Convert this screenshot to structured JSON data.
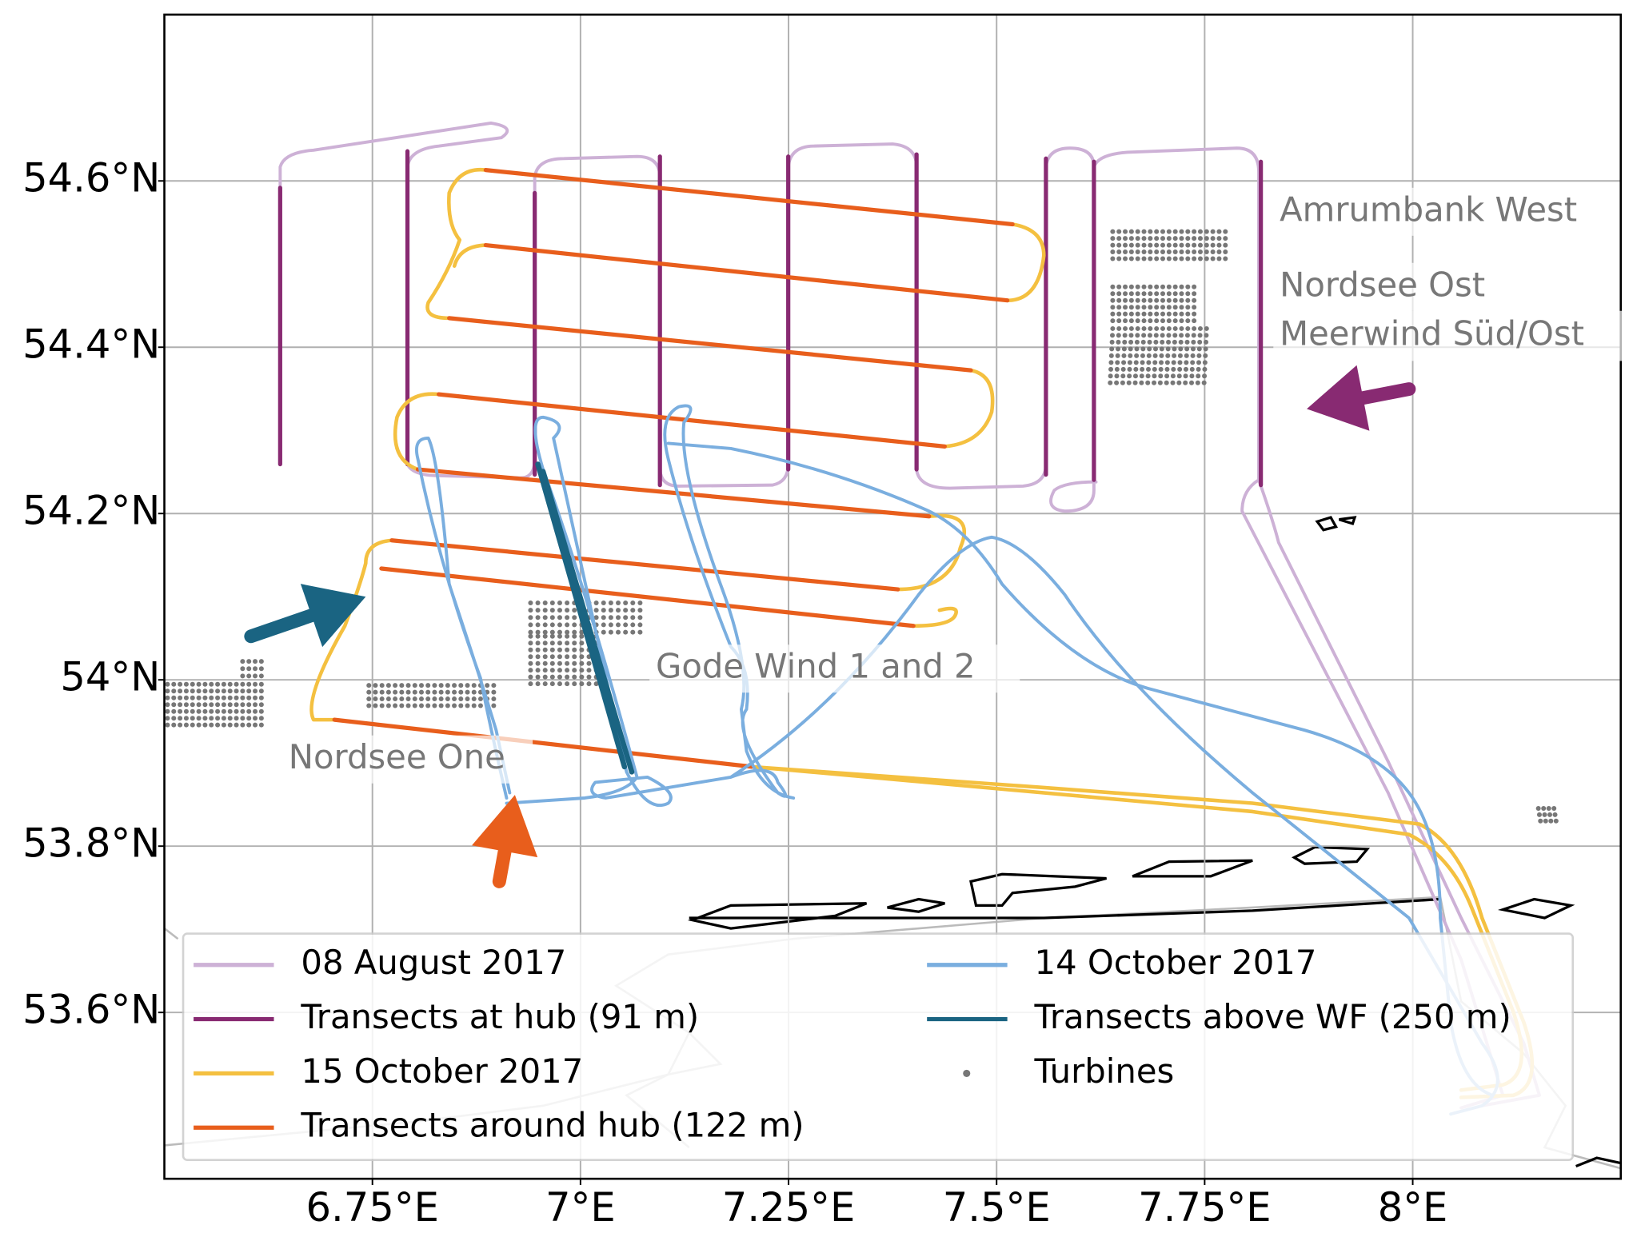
{
  "chart_data": {
    "type": "map",
    "xlim": [
      6.5,
      8.25
    ],
    "ylim": [
      53.4,
      54.8
    ],
    "xticks": [
      {
        "value": 6.75,
        "label": "6.75°E"
      },
      {
        "value": 7,
        "label": "7°E"
      },
      {
        "value": 7.25,
        "label": "7.25°E"
      },
      {
        "value": 7.5,
        "label": "7.5°E"
      },
      {
        "value": 7.75,
        "label": "7.75°E"
      },
      {
        "value": 8,
        "label": "8°E"
      }
    ],
    "yticks": [
      {
        "value": 53.6,
        "label": "53.6°N"
      },
      {
        "value": 53.8,
        "label": "53.8°N"
      },
      {
        "value": 54,
        "label": "54°N"
      },
      {
        "value": 54.2,
        "label": "54.2°N"
      },
      {
        "value": 54.4,
        "label": "54.4°N"
      },
      {
        "value": 54.6,
        "label": "54.6°N"
      }
    ],
    "grid": true,
    "series": [
      {
        "name": "08 August 2017",
        "color": "#cdb1d6"
      },
      {
        "name": "Transects at hub (91 m)",
        "color": "#882a72"
      },
      {
        "name": "15 October 2017",
        "color": "#f4c040"
      },
      {
        "name": "Transects around hub (122 m)",
        "color": "#e85e1c"
      },
      {
        "name": "14 October 2017",
        "color": "#7aaedf"
      },
      {
        "name": "Transects above WF (250 m)",
        "color": "#1a6482"
      },
      {
        "name": "Turbines",
        "color": "#777777",
        "marker": "dot"
      }
    ],
    "annotations": [
      "Amrumbank West",
      "Nordsee Ost",
      "Meerwind Süd/Ost",
      "Gode Wind 1 and 2",
      "Nordsee One"
    ]
  }
}
